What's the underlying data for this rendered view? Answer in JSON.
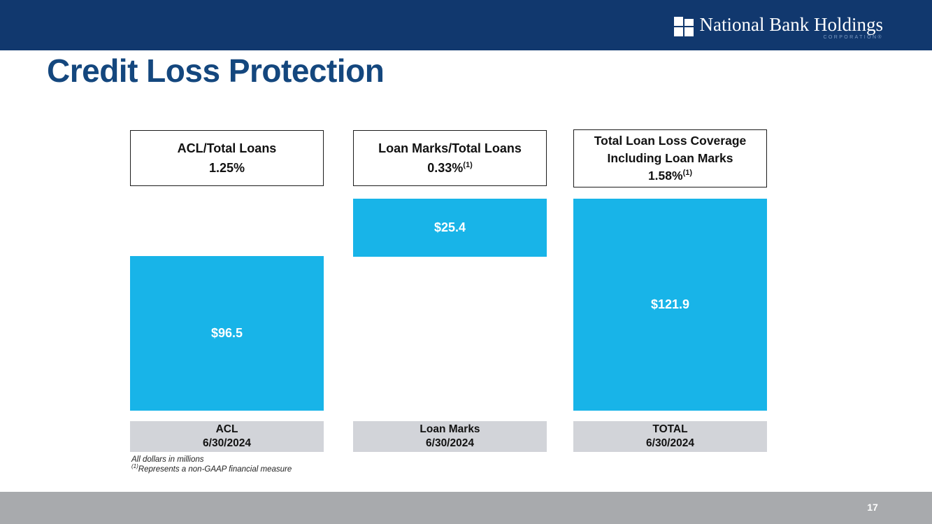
{
  "header": {
    "company_name": "National Bank Holdings",
    "company_subtitle": "CORPORATION®"
  },
  "title": "Credit Loss Protection",
  "columns": [
    {
      "header_line1": "ACL/Total Loans",
      "ratio": "1.25%",
      "ratio_sup": "",
      "bar_value": "$96.5",
      "label_line1": "ACL",
      "label_line2": "6/30/2024"
    },
    {
      "header_line1": "Loan Marks/Total Loans",
      "ratio": "0.33%",
      "ratio_sup": "(1)",
      "bar_value": "$25.4",
      "label_line1": "Loan Marks",
      "label_line2": "6/30/2024"
    },
    {
      "header_line1": "Total Loan Loss Coverage",
      "header_line2": "Including Loan Marks",
      "ratio": "1.58%",
      "ratio_sup": "(1)",
      "bar_value": "$121.9",
      "label_line1": "TOTAL",
      "label_line2": "6/30/2024"
    }
  ],
  "footnotes": [
    {
      "sup": "",
      "text": "All dollars in millions"
    },
    {
      "sup": "(1)",
      "text": "Represents a non-GAAP financial measure"
    }
  ],
  "footer": {
    "page_number": "17"
  },
  "colors": {
    "navy_banner": "#11386e",
    "title_text": "#14477e",
    "bar_fill": "#18b4e8",
    "label_box_bg": "#d2d4d9",
    "footer_bg": "#a8aaad",
    "corporation_text": "#7e9cc4"
  },
  "chart_data": {
    "type": "bar",
    "title": "Credit Loss Protection",
    "categories": [
      "ACL 6/30/2024",
      "Loan Marks 6/30/2024",
      "TOTAL 6/30/2024"
    ],
    "values": [
      96.5,
      25.4,
      121.9
    ],
    "units": "USD millions",
    "ratios_of_total_loans": [
      "1.25%",
      "0.33%(1)",
      "1.58%(1)"
    ],
    "data_labels": [
      "$96.5",
      "$25.4",
      "$121.9"
    ],
    "annotations": [
      "All dollars in millions",
      "(1) Represents a non-GAAP financial measure"
    ],
    "layout": "Three floating bars; Loan Marks and TOTAL bars share the same top edge; TOTAL height equals ACL plus Loan Marks; grid off; no axes"
  }
}
